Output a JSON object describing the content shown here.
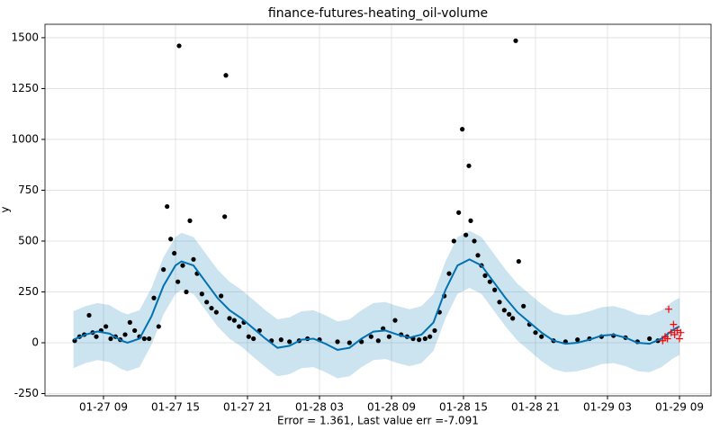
{
  "chart_data": {
    "type": "forecast",
    "title": "finance-futures-heating_oil-volume",
    "xlabel": "Error = 1.361, Last value err =-7.091",
    "ylabel": "y",
    "grid": true,
    "xlim": [
      4.125,
      59.625
    ],
    "ylim": [
      -261,
      1566
    ],
    "xticks": [
      {
        "value": 9,
        "label": "01-27 09"
      },
      {
        "value": 15,
        "label": "01-27 15"
      },
      {
        "value": 21,
        "label": "01-27 21"
      },
      {
        "value": 27,
        "label": "01-28 03"
      },
      {
        "value": 33,
        "label": "01-28 09"
      },
      {
        "value": 39,
        "label": "01-28 15"
      },
      {
        "value": 45,
        "label": "01-28 21"
      },
      {
        "value": 51,
        "label": "01-29 03"
      },
      {
        "value": 57,
        "label": "01-29 09"
      }
    ],
    "yticks": [
      -250,
      0,
      250,
      500,
      750,
      1000,
      1250,
      1500
    ],
    "forecast": {
      "color": "#0072b2",
      "band_color": "#0072b2",
      "x": [
        6.5,
        7.5,
        8.5,
        9.5,
        10.5,
        11,
        12,
        13,
        14,
        15,
        15.5,
        16.5,
        17.5,
        18.5,
        19.5,
        20.5,
        21.5,
        22.5,
        23.5,
        24.5,
        25.5,
        26.5,
        27.5,
        28.5,
        29.5,
        30.5,
        31.5,
        32.5,
        33.5,
        34.5,
        35.5,
        36.5,
        37.5,
        38.5,
        39.5,
        40.5,
        41.5,
        42.5,
        43.5,
        44.5,
        45.5,
        46.5,
        47.5,
        48.5,
        49.5,
        50.5,
        51.5,
        52.5,
        53.5,
        54.5,
        55.5,
        56.5,
        57
      ],
      "values": [
        15,
        40,
        55,
        45,
        10,
        0,
        20,
        130,
        280,
        380,
        400,
        380,
        300,
        220,
        160,
        120,
        70,
        20,
        -25,
        -15,
        15,
        20,
        -5,
        -35,
        -25,
        20,
        55,
        60,
        40,
        25,
        40,
        100,
        260,
        380,
        410,
        380,
        300,
        220,
        150,
        100,
        50,
        10,
        -5,
        0,
        15,
        35,
        40,
        25,
        0,
        -5,
        20,
        65,
        80
      ],
      "upper": [
        155,
        180,
        195,
        185,
        150,
        140,
        160,
        270,
        420,
        520,
        540,
        520,
        440,
        360,
        300,
        260,
        210,
        160,
        115,
        125,
        155,
        160,
        135,
        105,
        115,
        160,
        195,
        200,
        180,
        165,
        180,
        240,
        400,
        520,
        550,
        520,
        440,
        360,
        290,
        240,
        190,
        150,
        135,
        140,
        155,
        175,
        180,
        165,
        140,
        135,
        160,
        205,
        220
      ],
      "lower": [
        -125,
        -100,
        -85,
        -95,
        -130,
        -140,
        -120,
        -10,
        140,
        240,
        260,
        240,
        160,
        80,
        20,
        -20,
        -70,
        -120,
        -165,
        -155,
        -125,
        -120,
        -145,
        -175,
        -165,
        -120,
        -85,
        -80,
        -100,
        -115,
        -100,
        -40,
        120,
        240,
        270,
        240,
        160,
        80,
        10,
        -40,
        -90,
        -130,
        -145,
        -140,
        -125,
        -105,
        -100,
        -115,
        -140,
        -145,
        -120,
        -75,
        -60
      ]
    },
    "observed": {
      "color": "#000000",
      "x": [
        6.6,
        7.0,
        7.4,
        7.8,
        8.1,
        8.4,
        8.8,
        9.2,
        9.6,
        10.0,
        10.4,
        10.8,
        11.2,
        11.6,
        12.0,
        12.4,
        12.8,
        13.2,
        13.6,
        14.0,
        14.3,
        14.6,
        14.9,
        15.2,
        15.3,
        15.6,
        15.9,
        16.2,
        16.5,
        16.8,
        17.2,
        17.6,
        18.0,
        18.4,
        18.8,
        19.1,
        19.2,
        19.5,
        19.9,
        20.3,
        20.7,
        21.1,
        21.5,
        22.0,
        23.0,
        23.8,
        24.5,
        25.3,
        26.0,
        27.0,
        28.5,
        29.5,
        30.5,
        31.3,
        31.9,
        32.3,
        32.8,
        33.3,
        33.8,
        34.3,
        34.8,
        35.3,
        35.8,
        36.2,
        36.6,
        37.0,
        37.4,
        37.8,
        38.2,
        38.6,
        38.9,
        39.2,
        39.45,
        39.6,
        39.9,
        40.2,
        40.5,
        40.8,
        41.2,
        41.6,
        42.0,
        42.4,
        42.8,
        43.1,
        43.35,
        43.6,
        44.0,
        44.5,
        45.0,
        45.5,
        46.5,
        47.5,
        48.5,
        49.5,
        50.5,
        51.5,
        52.5,
        53.5,
        54.5,
        55.2
      ],
      "values": [
        10,
        30,
        40,
        135,
        50,
        30,
        60,
        80,
        20,
        30,
        15,
        40,
        100,
        60,
        30,
        20,
        20,
        220,
        80,
        360,
        670,
        510,
        440,
        300,
        1460,
        380,
        250,
        600,
        410,
        340,
        240,
        200,
        170,
        150,
        230,
        620,
        1315,
        120,
        110,
        80,
        100,
        30,
        20,
        60,
        10,
        15,
        5,
        10,
        20,
        15,
        5,
        0,
        5,
        30,
        10,
        70,
        30,
        110,
        40,
        30,
        20,
        15,
        20,
        30,
        60,
        150,
        230,
        340,
        500,
        640,
        1050,
        530,
        870,
        600,
        500,
        430,
        380,
        330,
        300,
        260,
        200,
        160,
        140,
        120,
        1485,
        400,
        180,
        90,
        50,
        30,
        10,
        5,
        15,
        20,
        30,
        35,
        25,
        5,
        20,
        10
      ]
    },
    "test": {
      "color": "#ff0000",
      "x": [
        55.6,
        55.8,
        56.0,
        56.1,
        56.3,
        56.5,
        56.6,
        56.8,
        57.0,
        57.1
      ],
      "values": [
        10,
        30,
        20,
        165,
        50,
        90,
        40,
        60,
        20,
        50
      ]
    }
  }
}
